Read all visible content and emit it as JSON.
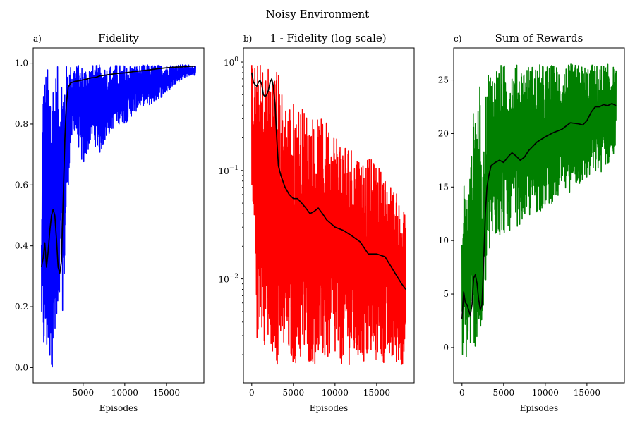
{
  "figure": {
    "title": "Noisy Environment"
  },
  "chart_data": [
    {
      "type": "line",
      "panel_label": "a)",
      "title": "Fidelity",
      "xlabel": "Episodes",
      "ylabel": "",
      "xlim": [
        -1000,
        19500
      ],
      "ylim": [
        -0.05,
        1.05
      ],
      "yscale": "linear",
      "xticks": [
        5000,
        10000,
        15000
      ],
      "xtick_labels": [
        "5000",
        "10000",
        "15000"
      ],
      "yticks": [
        0.0,
        0.2,
        0.4,
        0.6,
        0.8,
        1.0
      ],
      "ytick_labels": [
        "0.0",
        "0.2",
        "0.4",
        "0.6",
        "0.8",
        "1.0"
      ],
      "grid": false,
      "series": [
        {
          "role": "raw",
          "color": "#0000ff",
          "envelope": {
            "x": [
              0,
              200,
              500,
              800,
              1100,
              1400,
              1700,
              2000,
              2300,
              2600,
              3000,
              3500,
              4000,
              5000,
              6000,
              7000,
              8000,
              9000,
              10000,
              11000,
              12000,
              13000,
              14000,
              15000,
              16000,
              17000,
              18000,
              18500
            ],
            "upper": [
              0.45,
              0.98,
              0.99,
              0.99,
              0.99,
              0.99,
              0.99,
              0.99,
              0.99,
              0.99,
              0.995,
              0.995,
              0.995,
              0.995,
              0.995,
              0.995,
              0.995,
              0.995,
              0.995,
              0.995,
              0.995,
              0.995,
              0.995,
              0.995,
              0.995,
              0.995,
              0.995,
              0.99
            ],
            "lower": [
              0.15,
              0.0,
              0.0,
              0.0,
              0.0,
              0.0,
              0.0,
              0.0,
              0.3,
              0.15,
              0.5,
              0.72,
              0.78,
              0.65,
              0.75,
              0.7,
              0.76,
              0.8,
              0.8,
              0.83,
              0.86,
              0.86,
              0.88,
              0.9,
              0.93,
              0.95,
              0.96,
              0.96
            ]
          }
        },
        {
          "role": "smoothed",
          "color": "#000000",
          "x": [
            0,
            200,
            400,
            600,
            800,
            1000,
            1200,
            1400,
            1600,
            1800,
            2000,
            2200,
            2400,
            2600,
            2800,
            3000,
            3200,
            3500,
            4000,
            4500,
            5000,
            5500,
            6000,
            6500,
            7000,
            7500,
            8000,
            9000,
            10000,
            11000,
            12000,
            13000,
            14000,
            15000,
            16000,
            17000,
            18000,
            18500
          ],
          "y": [
            0.33,
            0.36,
            0.41,
            0.33,
            0.38,
            0.45,
            0.5,
            0.52,
            0.5,
            0.42,
            0.33,
            0.31,
            0.35,
            0.55,
            0.75,
            0.87,
            0.92,
            0.935,
            0.94,
            0.942,
            0.945,
            0.948,
            0.952,
            0.953,
            0.958,
            0.96,
            0.962,
            0.966,
            0.968,
            0.972,
            0.975,
            0.978,
            0.982,
            0.985,
            0.987,
            0.988,
            0.99,
            0.99
          ]
        }
      ]
    },
    {
      "type": "line",
      "panel_label": "b)",
      "title": "1 - Fidelity (log scale)",
      "xlabel": "Episodes",
      "ylabel": "",
      "xlim": [
        -1000,
        19500
      ],
      "ylim": [
        0.0011,
        1.35
      ],
      "yscale": "log",
      "xticks": [
        0,
        5000,
        10000,
        15000
      ],
      "xtick_labels": [
        "0",
        "5000",
        "10000",
        "15000"
      ],
      "yticks": [
        0.01,
        0.1,
        1.0
      ],
      "ytick_labels": [
        "10^-2",
        "10^-1",
        "10^0"
      ],
      "grid": false,
      "series": [
        {
          "role": "raw",
          "color": "#ff0000",
          "envelope": {
            "x": [
              0,
              500,
              1000,
              1500,
              2000,
              2500,
              3000,
              3500,
              4000,
              5000,
              6000,
              7000,
              8000,
              9000,
              10000,
              11000,
              12000,
              13000,
              14000,
              15000,
              16000,
              17000,
              18000,
              18500
            ],
            "upper": [
              1.0,
              1.0,
              1.0,
              1.0,
              1.0,
              1.0,
              1.0,
              0.6,
              0.5,
              0.45,
              0.4,
              0.35,
              0.3,
              0.3,
              0.25,
              0.2,
              0.18,
              0.15,
              0.13,
              0.12,
              0.09,
              0.07,
              0.05,
              0.04
            ],
            "lower": [
              0.03,
              0.0022,
              0.0035,
              0.0025,
              0.0016,
              0.002,
              0.0016,
              0.0018,
              0.0016,
              0.0016,
              0.0016,
              0.0016,
              0.0016,
              0.0016,
              0.0016,
              0.0016,
              0.0016,
              0.0016,
              0.0016,
              0.0016,
              0.0016,
              0.0016,
              0.0016,
              0.0016
            ]
          }
        },
        {
          "role": "smoothed",
          "color": "#000000",
          "x": [
            0,
            200,
            400,
            600,
            800,
            1000,
            1200,
            1400,
            1600,
            1800,
            2000,
            2200,
            2400,
            2600,
            2800,
            3000,
            3200,
            3500,
            4000,
            4500,
            5000,
            5500,
            6000,
            6500,
            7000,
            7500,
            8000,
            8500,
            9000,
            10000,
            11000,
            12000,
            13000,
            14000,
            15000,
            16000,
            17000,
            18000,
            18500
          ],
          "y": [
            0.8,
            0.65,
            0.62,
            0.6,
            0.65,
            0.68,
            0.62,
            0.5,
            0.48,
            0.5,
            0.55,
            0.65,
            0.7,
            0.6,
            0.4,
            0.2,
            0.11,
            0.09,
            0.07,
            0.06,
            0.055,
            0.055,
            0.05,
            0.045,
            0.04,
            0.042,
            0.045,
            0.04,
            0.035,
            0.03,
            0.028,
            0.025,
            0.022,
            0.017,
            0.017,
            0.016,
            0.012,
            0.009,
            0.008
          ]
        }
      ]
    },
    {
      "type": "line",
      "panel_label": "c)",
      "title": "Sum of Rewards",
      "xlabel": "Episodes",
      "ylabel": "",
      "xlim": [
        -1000,
        19500
      ],
      "ylim": [
        -3.3,
        28.0
      ],
      "yscale": "linear",
      "xticks": [
        0,
        5000,
        10000,
        15000
      ],
      "xtick_labels": [
        "0",
        "5000",
        "10000",
        "15000"
      ],
      "yticks": [
        0,
        5,
        10,
        15,
        20,
        25
      ],
      "ytick_labels": [
        "0",
        "5",
        "10",
        "15",
        "20",
        "25"
      ],
      "grid": false,
      "series": [
        {
          "role": "raw",
          "color": "#008000",
          "envelope": {
            "x": [
              0,
              300,
              600,
              900,
              1200,
              1500,
              1800,
              2100,
              2400,
              2700,
              3000,
              3500,
              4000,
              5000,
              6000,
              7000,
              8000,
              9000,
              10000,
              11000,
              12000,
              13000,
              14000,
              15000,
              16000,
              17000,
              18000,
              18500
            ],
            "upper": [
              10,
              17,
              14,
              16,
              19,
              25,
              22,
              26,
              14,
              21,
              26.5,
              26,
              26.5,
              26.5,
              26.5,
              26.5,
              26.5,
              26.5,
              26.5,
              26.5,
              26.5,
              26.5,
              26.5,
              26.5,
              26.5,
              26.5,
              26.5,
              26
            ],
            "lower": [
              -1.0,
              -1.8,
              -1.0,
              -0.5,
              0.0,
              0.0,
              -0.2,
              0.0,
              1.0,
              4.0,
              7.0,
              9.0,
              10.0,
              10.5,
              11.0,
              11.5,
              12.0,
              12.5,
              13.0,
              13.5,
              14.0,
              14.5,
              15.0,
              15.5,
              16.0,
              16.5,
              17.5,
              18.0
            ]
          }
        },
        {
          "role": "smoothed",
          "color": "#000000",
          "x": [
            0,
            200,
            400,
            600,
            800,
            1000,
            1200,
            1400,
            1600,
            1800,
            2000,
            2200,
            2400,
            2600,
            2800,
            3000,
            3200,
            3500,
            4000,
            4500,
            5000,
            5500,
            6000,
            6500,
            7000,
            7500,
            8000,
            9000,
            10000,
            11000,
            12000,
            13000,
            14000,
            14500,
            15000,
            15500,
            16000,
            16500,
            17000,
            17500,
            18000,
            18500
          ],
          "y": [
            2.7,
            5.2,
            4.2,
            4.0,
            3.5,
            3.0,
            4.0,
            6.5,
            6.8,
            6.0,
            4.5,
            3.5,
            4.0,
            8.0,
            12.5,
            15.0,
            16.0,
            17.0,
            17.3,
            17.5,
            17.3,
            17.8,
            18.2,
            17.9,
            17.5,
            17.8,
            18.4,
            19.2,
            19.7,
            20.1,
            20.4,
            21.0,
            20.9,
            20.8,
            21.2,
            22.0,
            22.5,
            22.5,
            22.7,
            22.6,
            22.8,
            22.6
          ]
        }
      ]
    }
  ]
}
